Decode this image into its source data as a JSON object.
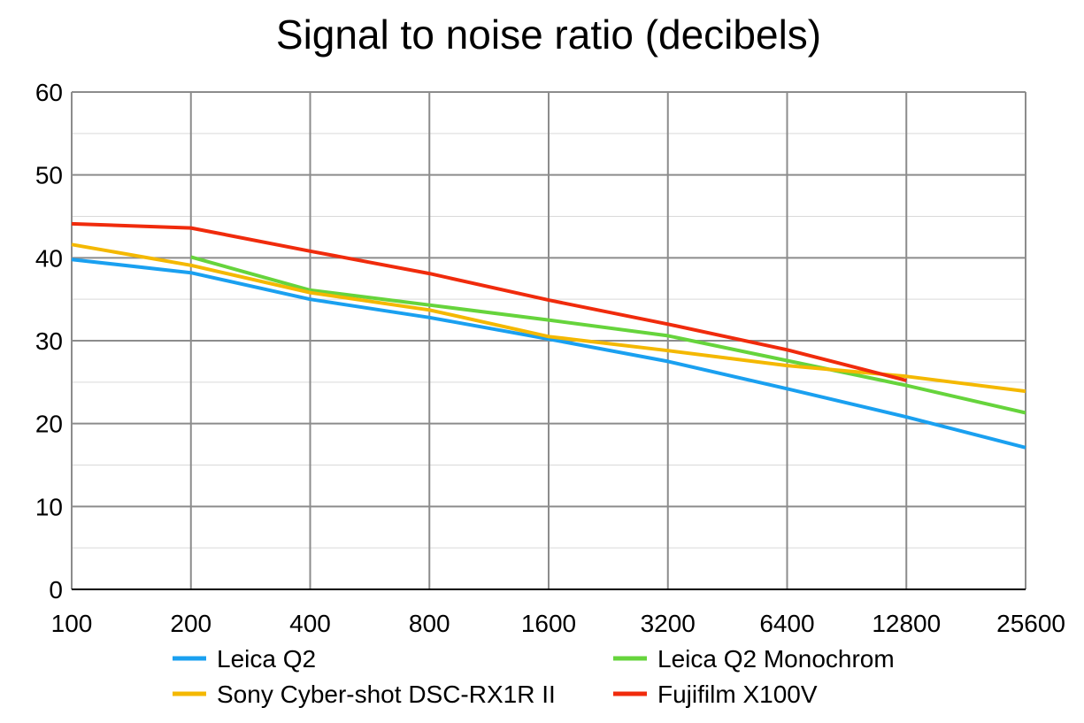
{
  "chart_data": {
    "type": "line",
    "title": "Signal to noise ratio (decibels)",
    "xlabel": "",
    "ylabel": "",
    "categories": [
      "100",
      "200",
      "400",
      "800",
      "1600",
      "3200",
      "6400",
      "12800",
      "25600"
    ],
    "ylim": [
      0,
      60
    ],
    "yticks": [
      "0",
      "10",
      "20",
      "30",
      "40",
      "50",
      "60"
    ],
    "grid": true,
    "legend_position": "bottom",
    "series": [
      {
        "name": "Leica Q2",
        "color": "#1aa0f0",
        "values": [
          39.8,
          38.2,
          35.0,
          32.8,
          30.2,
          27.5,
          24.2,
          20.8,
          17.1
        ]
      },
      {
        "name": "Leica Q2 Monochrom",
        "color": "#66d43c",
        "values": [
          null,
          40.1,
          36.1,
          34.3,
          32.5,
          30.6,
          27.6,
          24.6,
          21.3
        ]
      },
      {
        "name": "Sony Cyber-shot DSC-RX1R II",
        "color": "#f4b800",
        "values": [
          41.6,
          39.1,
          35.8,
          33.7,
          30.5,
          28.8,
          27.0,
          25.7,
          23.9
        ]
      },
      {
        "name": "Fujifilm X100V",
        "color": "#f02b0c",
        "values": [
          44.1,
          43.6,
          40.8,
          38.1,
          34.9,
          32.0,
          28.9,
          25.2,
          null
        ]
      }
    ],
    "legend_order": [
      "Leica Q2",
      "Leica Q2 Monochrom",
      "Sony Cyber-shot DSC-RX1R II",
      "Fujifilm X100V"
    ]
  }
}
